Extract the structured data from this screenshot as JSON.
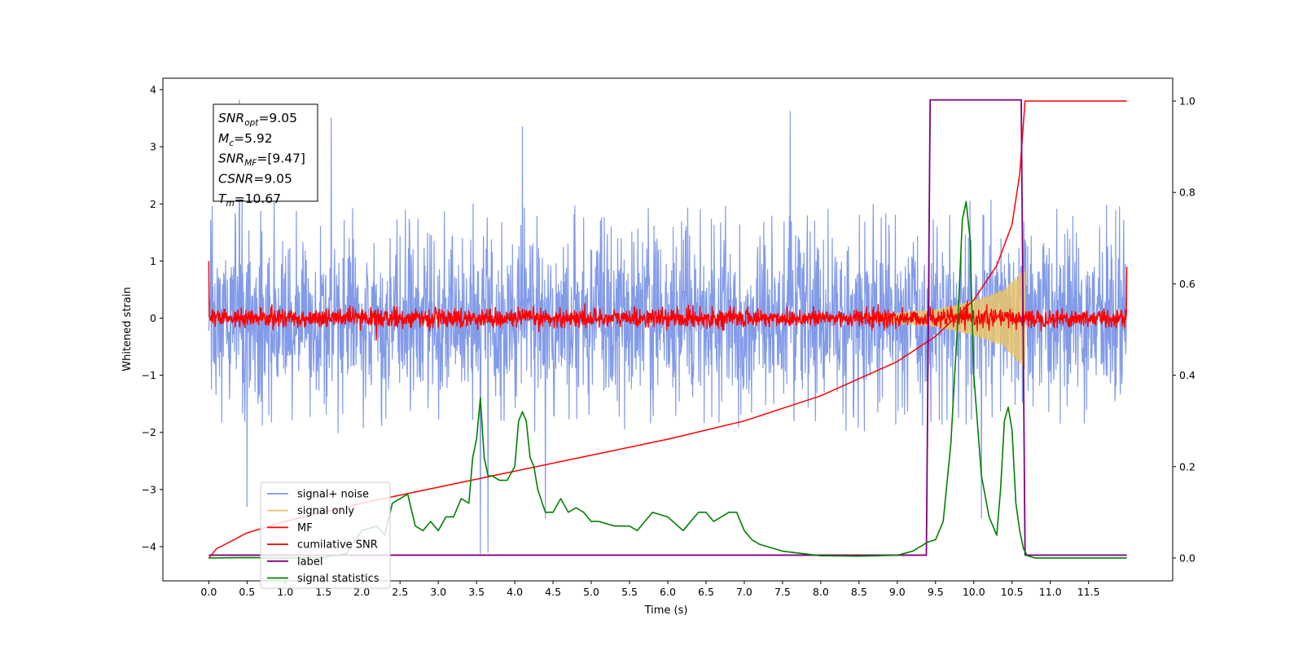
{
  "chart_data": {
    "type": "line",
    "title": "",
    "xlabel": "Time (s)",
    "ylabel": "Whitened strain",
    "y2label": "",
    "xlim": [
      -0.6,
      12.6
    ],
    "ylim": [
      -4.6,
      4.2
    ],
    "y2lim": [
      -0.05,
      1.05
    ],
    "x_ticks": [
      0.0,
      0.5,
      1.0,
      1.5,
      2.0,
      2.5,
      3.0,
      3.5,
      4.0,
      4.5,
      5.0,
      5.5,
      6.0,
      6.5,
      7.0,
      7.5,
      8.0,
      8.5,
      9.0,
      9.5,
      10.0,
      10.5,
      11.0,
      11.5
    ],
    "x_tick_labels": [
      "0.0",
      "0.5",
      "1.0",
      "1.5",
      "2.0",
      "2.5",
      "3.0",
      "3.5",
      "4.0",
      "4.5",
      "5.0",
      "5.5",
      "6.0",
      "6.5",
      "7.0",
      "7.5",
      "8.0",
      "8.5",
      "9.0",
      "9.5",
      "10.0",
      "10.5",
      "11.0",
      "11.5"
    ],
    "y_ticks": [
      -4,
      -3,
      -2,
      -1,
      0,
      1,
      2,
      3,
      4
    ],
    "y_tick_labels": [
      "−4",
      "−3",
      "−2",
      "−1",
      "0",
      "1",
      "2",
      "3",
      "4"
    ],
    "y2_ticks": [
      0.0,
      0.2,
      0.4,
      0.6,
      0.8,
      1.0
    ],
    "y2_tick_labels": [
      "0.0",
      "0.2",
      "0.4",
      "0.6",
      "0.8",
      "1.0"
    ],
    "grid": false,
    "legend_position": "lower-left",
    "info_box": {
      "lines": [
        {
          "sym": "SNR",
          "sub": "opt",
          "value": "=9.05"
        },
        {
          "sym": "M",
          "sub": "c",
          "value": "=5.92"
        },
        {
          "sym": "SNR",
          "sub": "MF",
          "value": "=[9.47]"
        },
        {
          "sym": "CSNR",
          "sub": "",
          "value": "=9.05"
        },
        {
          "sym": "T",
          "sub": "m",
          "value": "=10.67"
        }
      ]
    },
    "series": [
      {
        "name": "signal+ noise",
        "axis": "left",
        "color": "#7b96e8",
        "kind": "noise",
        "x_range": [
          0.0,
          12.0
        ],
        "std": 0.72,
        "envelope": [
          [
            0.0,
            1.8
          ],
          [
            1.0,
            1.9
          ],
          [
            2.0,
            1.7
          ],
          [
            4.0,
            1.8
          ],
          [
            6.0,
            1.7
          ],
          [
            8.0,
            1.8
          ],
          [
            10.0,
            1.8
          ],
          [
            12.0,
            1.8
          ]
        ],
        "spikes": [
          [
            0.4,
            3.82
          ],
          [
            1.6,
            3.5
          ],
          [
            4.1,
            3.35
          ],
          [
            7.6,
            3.62
          ],
          [
            0.5,
            -3.3
          ],
          [
            3.55,
            -4.12
          ],
          [
            3.65,
            -4.1
          ],
          [
            4.4,
            -3.5
          ],
          [
            10.1,
            -3.5
          ]
        ]
      },
      {
        "name": "signal only",
        "axis": "left",
        "color": "#e9c46a",
        "kind": "chirp",
        "x_range": [
          8.6,
          10.67
        ],
        "amplitude": [
          [
            8.6,
            0.05
          ],
          [
            9.5,
            0.15
          ],
          [
            10.0,
            0.3
          ],
          [
            10.4,
            0.5
          ],
          [
            10.67,
            0.9
          ]
        ]
      },
      {
        "name": "MF",
        "axis": "left",
        "color": "#ff0000",
        "kind": "noise",
        "x_range": [
          0.0,
          12.0
        ],
        "std": 0.08,
        "endpoints": [
          [
            0.0,
            1.0
          ],
          [
            12.0,
            0.9
          ]
        ]
      },
      {
        "name": "cumilative SNR",
        "axis": "right",
        "color": "#ff0000",
        "kind": "line",
        "x": [
          0.0,
          0.1,
          0.5,
          1.0,
          2.0,
          3.0,
          4.0,
          5.0,
          6.0,
          7.0,
          8.0,
          9.0,
          9.5,
          10.0,
          10.3,
          10.5,
          10.6,
          10.67,
          11.0,
          12.0
        ],
        "y": [
          0.0,
          0.02,
          0.055,
          0.08,
          0.12,
          0.155,
          0.19,
          0.225,
          0.26,
          0.3,
          0.355,
          0.43,
          0.485,
          0.565,
          0.64,
          0.73,
          0.84,
          1.0,
          1.0,
          1.0
        ]
      },
      {
        "name": "label",
        "axis": "left",
        "color": "#800080",
        "kind": "line",
        "x": [
          0.0,
          9.38,
          9.43,
          10.62,
          10.67,
          12.0
        ],
        "y": [
          -4.15,
          -4.15,
          3.82,
          3.82,
          -4.15,
          -4.15
        ]
      },
      {
        "name": "signal statistics",
        "axis": "right",
        "color": "#008000",
        "kind": "line",
        "x": [
          0.0,
          0.5,
          1.0,
          1.5,
          1.8,
          2.0,
          2.2,
          2.3,
          2.4,
          2.5,
          2.6,
          2.7,
          2.8,
          2.9,
          3.0,
          3.1,
          3.2,
          3.3,
          3.4,
          3.45,
          3.5,
          3.55,
          3.6,
          3.65,
          3.7,
          3.8,
          3.9,
          4.0,
          4.05,
          4.1,
          4.15,
          4.2,
          4.25,
          4.3,
          4.4,
          4.5,
          4.6,
          4.7,
          4.8,
          4.9,
          5.0,
          5.1,
          5.3,
          5.5,
          5.6,
          5.8,
          6.0,
          6.2,
          6.4,
          6.5,
          6.6,
          6.8,
          6.9,
          7.0,
          7.1,
          7.2,
          7.5,
          8.0,
          8.5,
          9.0,
          9.2,
          9.4,
          9.5,
          9.6,
          9.7,
          9.8,
          9.85,
          9.9,
          9.95,
          10.0,
          10.1,
          10.2,
          10.3,
          10.35,
          10.4,
          10.45,
          10.5,
          10.55,
          10.6,
          10.65,
          10.7,
          10.8,
          11.0,
          11.5,
          12.0
        ],
        "y": [
          0.0,
          0.001,
          0.0,
          0.001,
          0.01,
          0.06,
          0.07,
          0.05,
          0.12,
          0.13,
          0.14,
          0.07,
          0.06,
          0.08,
          0.06,
          0.09,
          0.09,
          0.13,
          0.12,
          0.22,
          0.26,
          0.35,
          0.22,
          0.18,
          0.18,
          0.17,
          0.17,
          0.2,
          0.3,
          0.32,
          0.3,
          0.22,
          0.2,
          0.15,
          0.1,
          0.1,
          0.13,
          0.1,
          0.11,
          0.1,
          0.08,
          0.08,
          0.07,
          0.07,
          0.06,
          0.1,
          0.09,
          0.06,
          0.1,
          0.1,
          0.08,
          0.1,
          0.1,
          0.06,
          0.04,
          0.03,
          0.015,
          0.005,
          0.004,
          0.006,
          0.015,
          0.035,
          0.04,
          0.08,
          0.25,
          0.55,
          0.74,
          0.78,
          0.7,
          0.4,
          0.18,
          0.09,
          0.05,
          0.15,
          0.3,
          0.33,
          0.28,
          0.12,
          0.06,
          0.02,
          0.005,
          0.0,
          0.0,
          0.0,
          0.0
        ]
      }
    ]
  }
}
